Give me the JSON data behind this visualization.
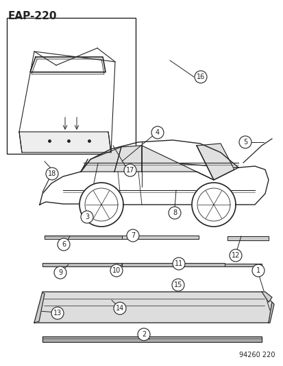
{
  "title": "EAP-220",
  "footer": "94260 220",
  "bg_color": "#ffffff",
  "line_color": "#222222"
}
